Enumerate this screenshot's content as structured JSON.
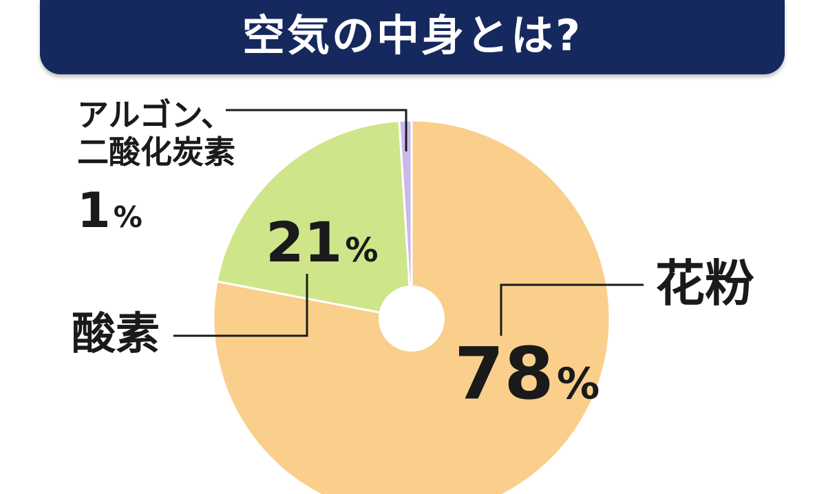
{
  "title": "空気の中身とは?",
  "chart_data": {
    "type": "pie",
    "title": "空気の中身とは?",
    "slices": [
      {
        "name": "花粉",
        "value": 78,
        "label": "78",
        "unit": "%",
        "color": "#f9cf8b"
      },
      {
        "name": "酸素",
        "value": 21,
        "label": "21",
        "unit": "%",
        "color": "#cfe589"
      },
      {
        "name_lines": [
          "アルゴン、",
          "二酸化炭素"
        ],
        "value": 1,
        "label": "1",
        "unit": "%",
        "color": "#c9b8ea"
      }
    ],
    "donut_hole": true,
    "leader_lines": true
  }
}
